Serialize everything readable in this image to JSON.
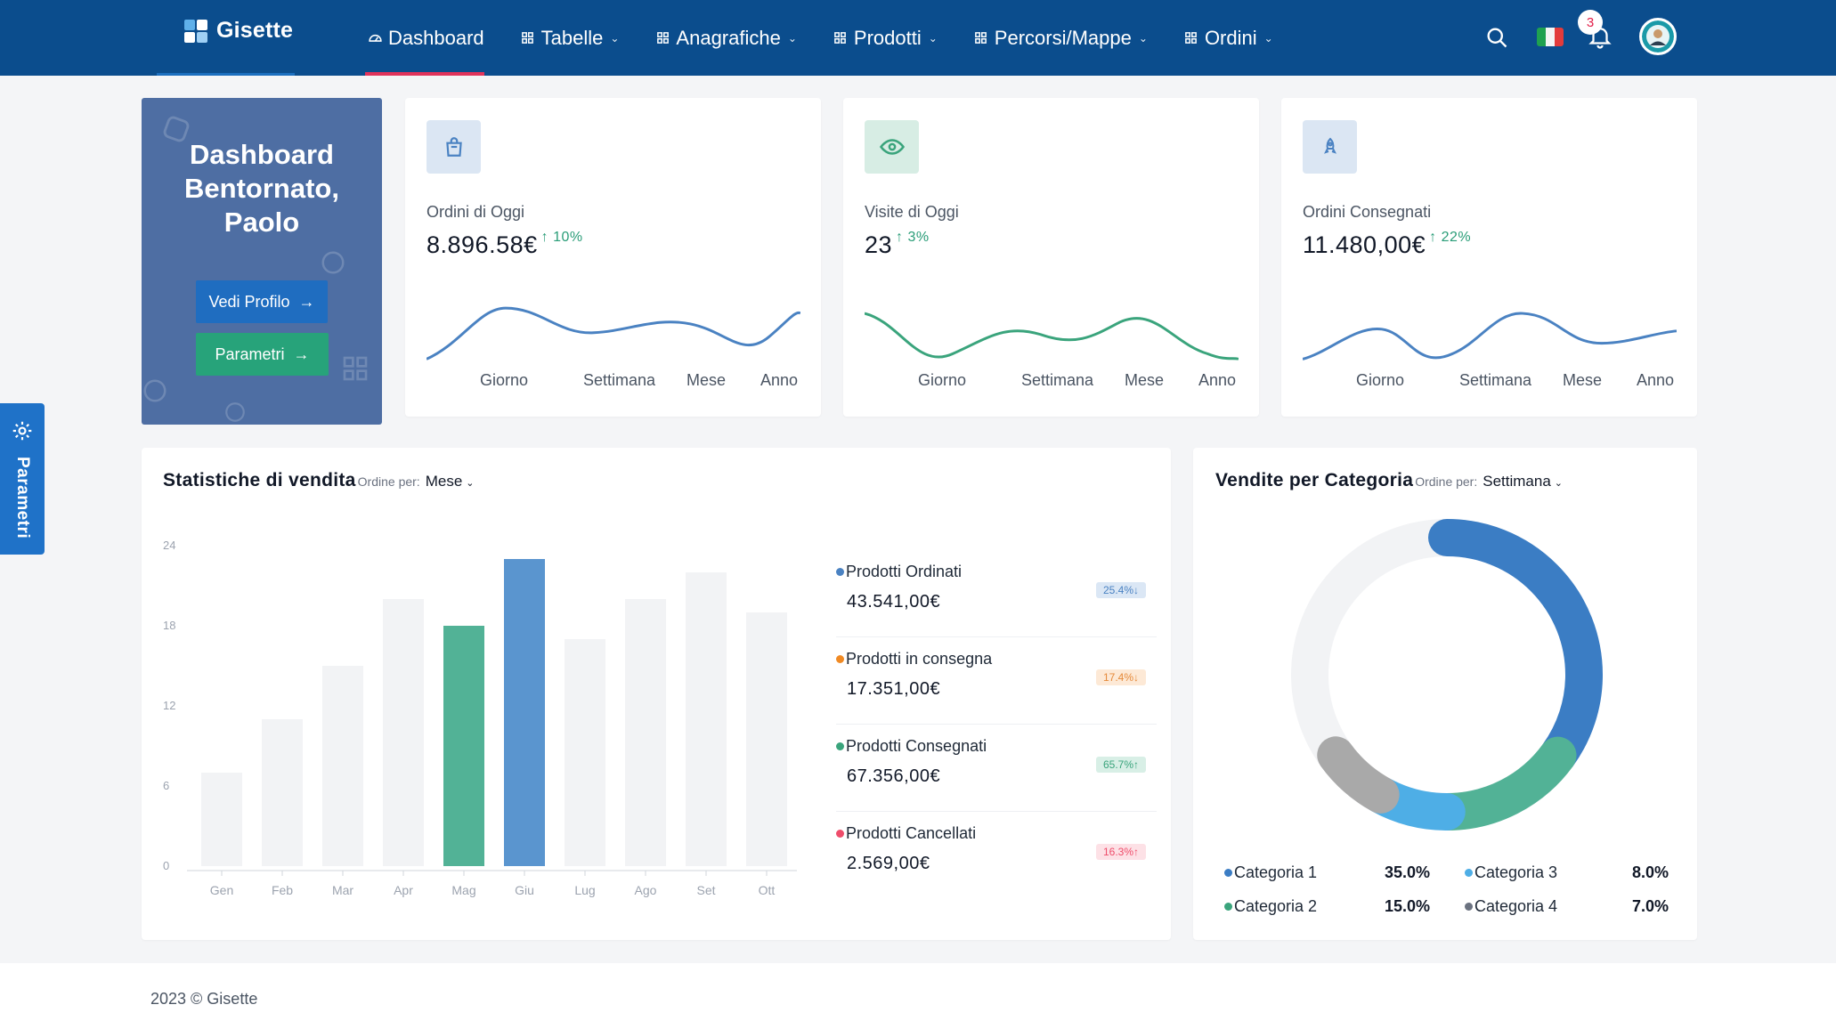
{
  "brand": {
    "name": "Gisette"
  },
  "nav": {
    "items": [
      {
        "label": "Dashboard",
        "icon": "dashboard-icon",
        "dropdown": false
      },
      {
        "label": "Tabelle",
        "icon": "grid-icon",
        "dropdown": true
      },
      {
        "label": "Anagrafiche",
        "icon": "grid-icon",
        "dropdown": true
      },
      {
        "label": "Prodotti",
        "icon": "grid-icon",
        "dropdown": true
      },
      {
        "label": "Percorsi/Mappe",
        "icon": "grid-icon",
        "dropdown": true
      },
      {
        "label": "Ordini",
        "icon": "grid-icon",
        "dropdown": true
      }
    ],
    "active_index": 0,
    "notifications_count": "3",
    "language": "italian-flag-icon"
  },
  "welcome": {
    "line1": "Dashboard",
    "line2": "Bentornato,",
    "line3": "Paolo",
    "profile_button": "Vedi Profilo",
    "settings_button": "Parametri"
  },
  "stats": [
    {
      "label": "Ordini di Oggi",
      "value": "8.896.58€",
      "change": "10%",
      "icon": "shopping-bag-icon",
      "color": "#4a82c2",
      "icon_bg": "#dbe6f3",
      "periods": [
        "Giorno",
        "Settimana",
        "Mese",
        "Anno"
      ]
    },
    {
      "label": "Visite di Oggi",
      "value": "23",
      "change": "3%",
      "icon": "eye-icon",
      "color": "#3aa47c",
      "icon_bg": "#d7ede4",
      "periods": [
        "Giorno",
        "Settimana",
        "Mese",
        "Anno"
      ]
    },
    {
      "label": "Ordini Consegnati",
      "value": "11.480,00€",
      "change": "22%",
      "icon": "rocket-icon",
      "color": "#4a82c2",
      "icon_bg": "#dbe6f3",
      "periods": [
        "Giorno",
        "Settimana",
        "Mese",
        "Anno"
      ]
    }
  ],
  "sales": {
    "title": "Statistiche di vendita",
    "sort_label": "Ordine per:",
    "sort_value": "Mese",
    "legend": [
      {
        "name": "Prodotti Ordinati",
        "value": "43.541,00€",
        "badge": "25.4%",
        "trend": "down",
        "color": "#4a82c2",
        "badge_bg": "#dbe7f5",
        "badge_fg": "#4a82c2"
      },
      {
        "name": "Prodotti in consegna",
        "value": "17.351,00€",
        "badge": "17.4%",
        "trend": "down",
        "color": "#f08a24",
        "badge_bg": "#fde9d6",
        "badge_fg": "#e58a3a"
      },
      {
        "name": "Prodotti Consegnati",
        "value": "67.356,00€",
        "badge": "65.7%",
        "trend": "up",
        "color": "#3aa47c",
        "badge_bg": "#d8efe6",
        "badge_fg": "#3aa47c"
      },
      {
        "name": "Prodotti Cancellati",
        "value": "2.569,00€",
        "badge": "16.3%",
        "trend": "up",
        "color": "#ef4d6b",
        "badge_bg": "#fde1e6",
        "badge_fg": "#ef4d6b"
      }
    ]
  },
  "categories": {
    "title": "Vendite per Categoria",
    "sort_label": "Ordine per:",
    "sort_value": "Settimana",
    "items": [
      {
        "name": "Categoria 1",
        "pct": "35.0%",
        "color": "#3b7dc4"
      },
      {
        "name": "Categoria 2",
        "pct": "15.0%",
        "color": "#3aa47c"
      },
      {
        "name": "Categoria 3",
        "pct": "8.0%",
        "color": "#4eaee6"
      },
      {
        "name": "Categoria 4",
        "pct": "7.0%",
        "color": "#6b7280"
      }
    ],
    "donut_segments": [
      {
        "name": "Categoria 1",
        "value": 35,
        "color": "#3b7dc4"
      },
      {
        "name": "Categoria 2",
        "value": 15,
        "color": "#52b296"
      },
      {
        "name": "Categoria 3",
        "value": 8,
        "color": "#4eaee6"
      },
      {
        "name": "Categoria 4",
        "value": 7,
        "color": "#a9a9a9"
      }
    ]
  },
  "side_tab": {
    "label": "Parametri"
  },
  "footer": {
    "copyright": "2023 © Gisette"
  },
  "chart_data": [
    {
      "type": "bar",
      "title": "Statistiche di vendita",
      "categories": [
        "Gen",
        "Feb",
        "Mar",
        "Apr",
        "Mag",
        "Giu",
        "Lug",
        "Ago",
        "Set",
        "Ott"
      ],
      "values": [
        7,
        11,
        15,
        20,
        18,
        23,
        17,
        20,
        22,
        19
      ],
      "highlight": {
        "Mag": "#52b296",
        "Giu": "#5a95cf"
      },
      "default_color": "#f2f3f5",
      "ylim": [
        0,
        24
      ],
      "yticks": [
        0,
        6,
        12,
        18,
        24
      ],
      "grid": false
    },
    {
      "type": "pie",
      "title": "Vendite per Categoria",
      "labels": [
        "Categoria 1",
        "Categoria 2",
        "Categoria 3",
        "Categoria 4"
      ],
      "values": [
        35,
        15,
        8,
        7
      ]
    }
  ]
}
